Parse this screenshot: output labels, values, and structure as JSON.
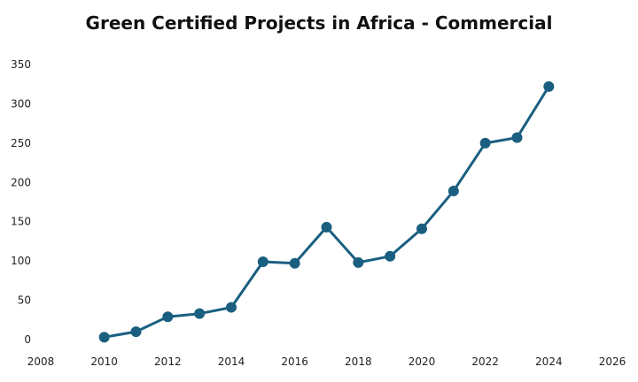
{
  "chart_data": {
    "type": "line",
    "title": "Green Certified Projects in Africa - Commercial",
    "xlabel": "",
    "ylabel": "",
    "xlim": [
      2008,
      2026
    ],
    "ylim": [
      0,
      350
    ],
    "grid": false,
    "x_ticks": [
      "2008",
      "2010",
      "2012",
      "2014",
      "2016",
      "2018",
      "2020",
      "2022",
      "2024",
      "2026"
    ],
    "y_ticks": [
      "0",
      "50",
      "100",
      "150",
      "200",
      "250",
      "300",
      "350"
    ],
    "series": [
      {
        "name": "Commercial",
        "color": "#1a5f80",
        "x": [
          2010,
          2011,
          2012,
          2013,
          2014,
          2015,
          2016,
          2017,
          2018,
          2019,
          2020,
          2021,
          2022,
          2023,
          2024
        ],
        "values": [
          3,
          10,
          29,
          33,
          41,
          99,
          97,
          143,
          98,
          106,
          141,
          189,
          250,
          257,
          322
        ]
      }
    ]
  }
}
